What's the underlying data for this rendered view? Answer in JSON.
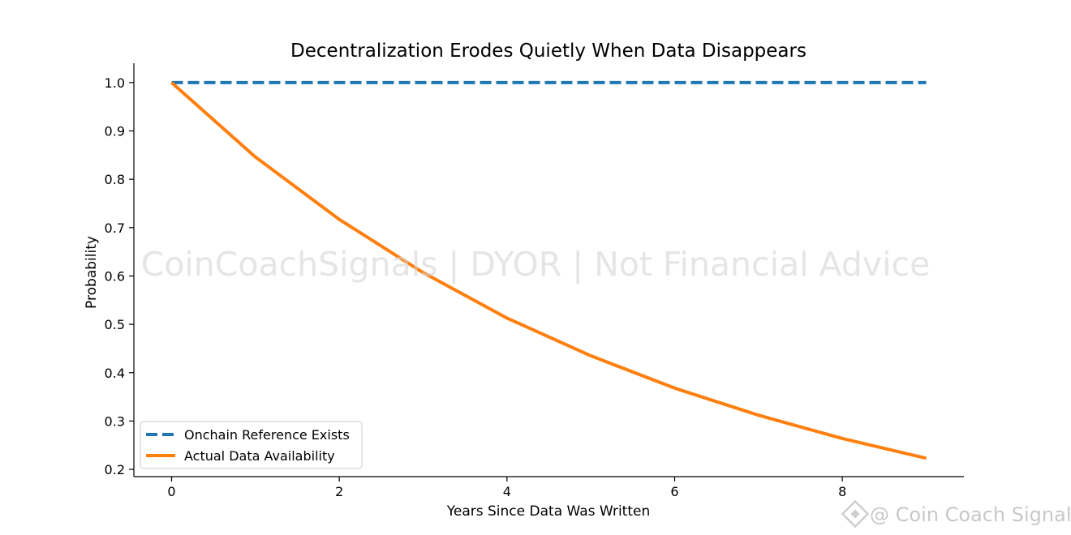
{
  "chart_data": {
    "type": "line",
    "title": "Decentralization Erodes Quietly When Data Disappears",
    "xlabel": "Years Since Data Was Written",
    "ylabel": "Probability",
    "xlim": [
      -0.45,
      9.45
    ],
    "ylim": [
      0.185,
      1.04
    ],
    "x_ticks": [
      0,
      2,
      4,
      6,
      8
    ],
    "x_tick_labels": [
      "0",
      "2",
      "4",
      "6",
      "8"
    ],
    "y_ticks": [
      0.2,
      0.3,
      0.4,
      0.5,
      0.6,
      0.7,
      0.8,
      0.9,
      1.0
    ],
    "y_tick_labels": [
      "0.2",
      "0.3",
      "0.4",
      "0.5",
      "0.6",
      "0.7",
      "0.8",
      "0.9",
      "1.0"
    ],
    "x": [
      0,
      1,
      2,
      3,
      4,
      5,
      6,
      7,
      8,
      9
    ],
    "grid": false,
    "legend_position": "bottom-left",
    "series": [
      {
        "name": "Onchain Reference Exists",
        "values": [
          1.0,
          1.0,
          1.0,
          1.0,
          1.0,
          1.0,
          1.0,
          1.0,
          1.0,
          1.0
        ],
        "color": "#1f77b4",
        "style": "dashed"
      },
      {
        "name": "Actual Data Availability",
        "values": [
          1.0,
          0.846,
          0.717,
          0.607,
          0.513,
          0.435,
          0.368,
          0.312,
          0.264,
          0.223
        ],
        "color": "#ff7f0e",
        "style": "solid"
      }
    ]
  },
  "watermark": "CoinCoachSignals | DYOR | Not Financial Advice",
  "brand": "@ Coin Coach Signals"
}
